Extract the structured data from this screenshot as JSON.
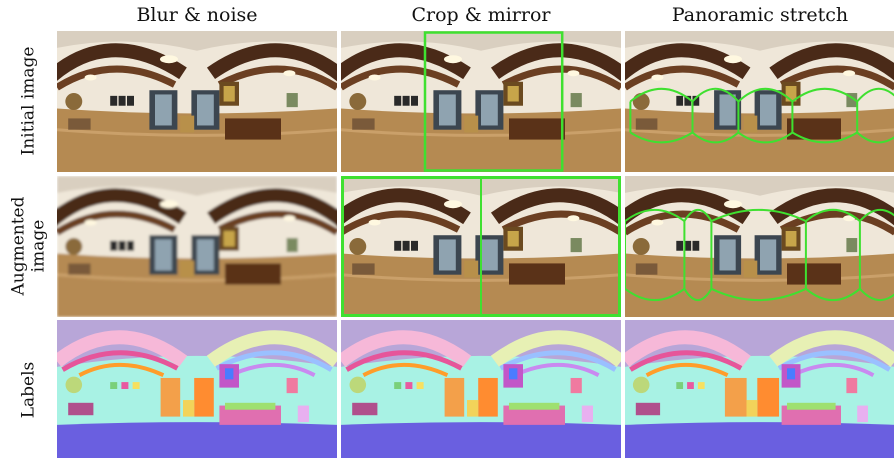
{
  "columns": [
    {
      "title": "Blur & noise"
    },
    {
      "title": "Crop & mirror"
    },
    {
      "title": "Panoramic stretch"
    }
  ],
  "rows": [
    {
      "label_line1": "Initial image",
      "label_line2": ""
    },
    {
      "label_line1": "Augmented",
      "label_line2": "image"
    },
    {
      "label_line1": "Labels",
      "label_line2": ""
    }
  ],
  "colors": {
    "highlight": "#3fe030",
    "wall": "#efe7d9",
    "floor": "#b58a52",
    "beam": "#4a2a18",
    "label_floor": "#6a5fe0",
    "label_wall": "#a8f2e4",
    "label_ceiling": "#b8a6d8"
  }
}
